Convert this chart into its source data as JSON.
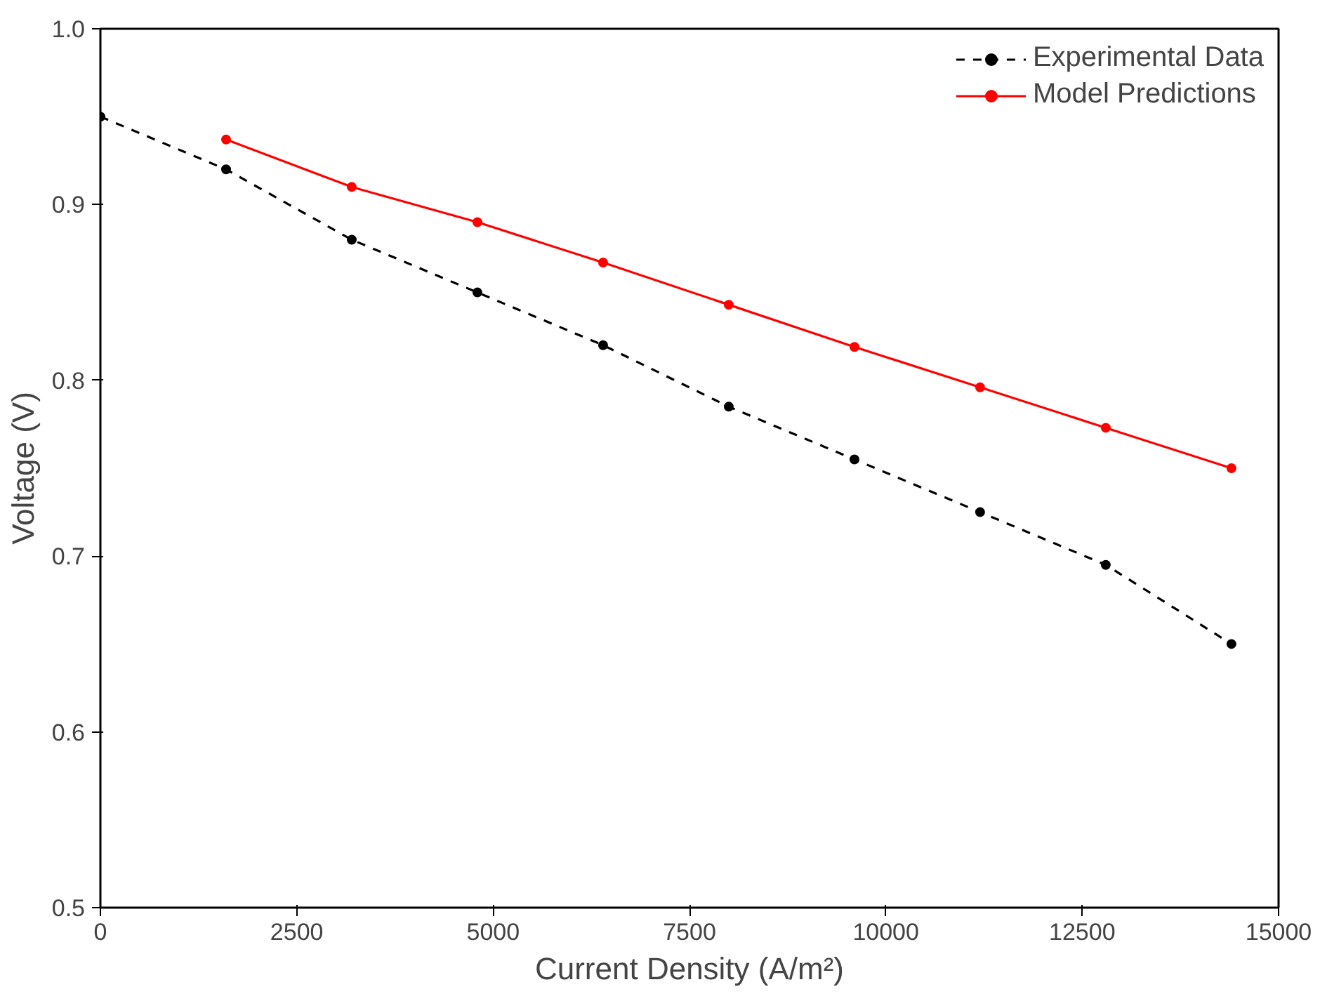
{
  "chart_data": {
    "type": "line",
    "xlabel": "Current Density (A/m²)",
    "ylabel": "Voltage (V)",
    "xlim": [
      0,
      15000
    ],
    "xticks": [
      0,
      2500,
      5000,
      7500,
      10000,
      12500,
      15000
    ],
    "ylim": [
      0.5,
      1.0
    ],
    "yticks": [
      0.5,
      0.6,
      0.7,
      0.8,
      0.9,
      {
        "value": 1.0,
        "label": "1.0"
      }
    ],
    "grid": false,
    "legend": "top right",
    "marker": "circle",
    "series": [
      {
        "name": "Experimental Data",
        "color": "#000000",
        "line_style": "dashed",
        "x": [
          0,
          1600,
          3200,
          4800,
          6400,
          8000,
          9600,
          11200,
          12800,
          14400
        ],
        "values": [
          0.95,
          0.92,
          0.88,
          0.85,
          0.82,
          0.785,
          0.755,
          0.725,
          0.695,
          0.65
        ]
      },
      {
        "name": "Model Predictions",
        "color": "#ff0000",
        "line_style": "solid",
        "x": [
          1600,
          3200,
          4800,
          6400,
          8000,
          9600,
          11200,
          12800,
          14400
        ],
        "values": [
          0.937,
          0.91,
          0.89,
          0.867,
          0.843,
          0.819,
          0.796,
          0.773,
          0.75
        ]
      }
    ]
  }
}
